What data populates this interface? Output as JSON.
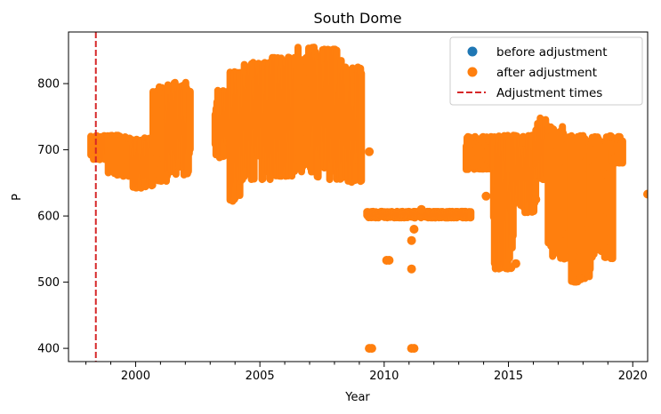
{
  "chart_data": {
    "type": "scatter",
    "title": "South Dome",
    "xlabel": "Year",
    "ylabel": "P",
    "xlim": [
      1997.3,
      2020.6
    ],
    "ylim": [
      380,
      878
    ],
    "x_ticks": [
      2000,
      2005,
      2010,
      2015,
      2020
    ],
    "x_tick_labels": [
      "2000",
      "2005",
      "2010",
      "2015",
      "2020"
    ],
    "x_minor_ticks": [
      1998,
      1999,
      2001,
      2002,
      2003,
      2004,
      2006,
      2007,
      2008,
      2009,
      2011,
      2012,
      2013,
      2014,
      2016,
      2017,
      2018,
      2019
    ],
    "y_ticks": [
      400,
      500,
      600,
      700,
      800
    ],
    "y_tick_labels": [
      "400",
      "500",
      "600",
      "700",
      "800"
    ],
    "grid": false,
    "legend_position": "top-right",
    "legend": [
      {
        "label": "before adjustment",
        "kind": "marker",
        "color": "#1f77b4"
      },
      {
        "label": "after adjustment",
        "kind": "marker",
        "color": "#ff7f0e"
      },
      {
        "label": "Adjustment times",
        "kind": "dashed-line",
        "color": "#d62728"
      }
    ],
    "adjustment_times": [
      1998.4
    ],
    "series": [
      {
        "name": "after adjustment",
        "color": "#ff7f0e",
        "envelopes": [
          {
            "x0": 1998.2,
            "x1": 1998.9,
            "low": 685,
            "high": 722
          },
          {
            "x0": 1998.9,
            "x1": 1999.9,
            "low": 660,
            "high": 722
          },
          {
            "x0": 1999.9,
            "x1": 2000.7,
            "low": 642,
            "high": 718
          },
          {
            "x0": 2000.7,
            "x1": 2001.3,
            "low": 652,
            "high": 795
          },
          {
            "x0": 2001.3,
            "x1": 2002.2,
            "low": 662,
            "high": 802
          },
          {
            "x0": 2003.2,
            "x1": 2003.8,
            "low": 688,
            "high": 790
          },
          {
            "x0": 2003.8,
            "x1": 2004.3,
            "low": 622,
            "high": 818
          },
          {
            "x0": 2004.3,
            "x1": 2005.5,
            "low": 655,
            "high": 832
          },
          {
            "x0": 2005.5,
            "x1": 2006.5,
            "low": 660,
            "high": 840
          },
          {
            "x0": 2006.5,
            "x1": 2007.2,
            "low": 665,
            "high": 855
          },
          {
            "x0": 2007.2,
            "x1": 2008.3,
            "low": 655,
            "high": 852
          },
          {
            "x0": 2008.3,
            "x1": 2009.1,
            "low": 650,
            "high": 825
          },
          {
            "x0": 2009.3,
            "x1": 2013.5,
            "low": 597,
            "high": 607
          },
          {
            "x0": 2013.3,
            "x1": 2014.4,
            "low": 670,
            "high": 720
          },
          {
            "x0": 2014.4,
            "x1": 2015.2,
            "low": 520,
            "high": 722
          },
          {
            "x0": 2015.2,
            "x1": 2016.1,
            "low": 605,
            "high": 722
          },
          {
            "x0": 2016.1,
            "x1": 2016.6,
            "low": 655,
            "high": 748
          },
          {
            "x0": 2016.6,
            "x1": 2017.5,
            "low": 535,
            "high": 735
          },
          {
            "x0": 2017.5,
            "x1": 2018.3,
            "low": 500,
            "high": 722
          },
          {
            "x0": 2018.3,
            "x1": 2019.2,
            "low": 535,
            "high": 720
          },
          {
            "x0": 2019.2,
            "x1": 2019.6,
            "low": 680,
            "high": 720
          }
        ],
        "points": [
          {
            "x": 2009.4,
            "y": 697
          },
          {
            "x": 2009.4,
            "y": 400
          },
          {
            "x": 2009.5,
            "y": 400
          },
          {
            "x": 2010.1,
            "y": 533
          },
          {
            "x": 2010.2,
            "y": 533
          },
          {
            "x": 2011.1,
            "y": 400
          },
          {
            "x": 2011.2,
            "y": 400
          },
          {
            "x": 2011.1,
            "y": 520
          },
          {
            "x": 2011.1,
            "y": 563
          },
          {
            "x": 2011.2,
            "y": 580
          },
          {
            "x": 2011.5,
            "y": 610
          },
          {
            "x": 2020.6,
            "y": 633
          },
          {
            "x": 2017.9,
            "y": 505
          },
          {
            "x": 2015.1,
            "y": 522
          },
          {
            "x": 2015.3,
            "y": 528
          },
          {
            "x": 2019.1,
            "y": 720
          },
          {
            "x": 2014.1,
            "y": 630
          },
          {
            "x": 2016.1,
            "y": 625
          }
        ]
      }
    ]
  }
}
